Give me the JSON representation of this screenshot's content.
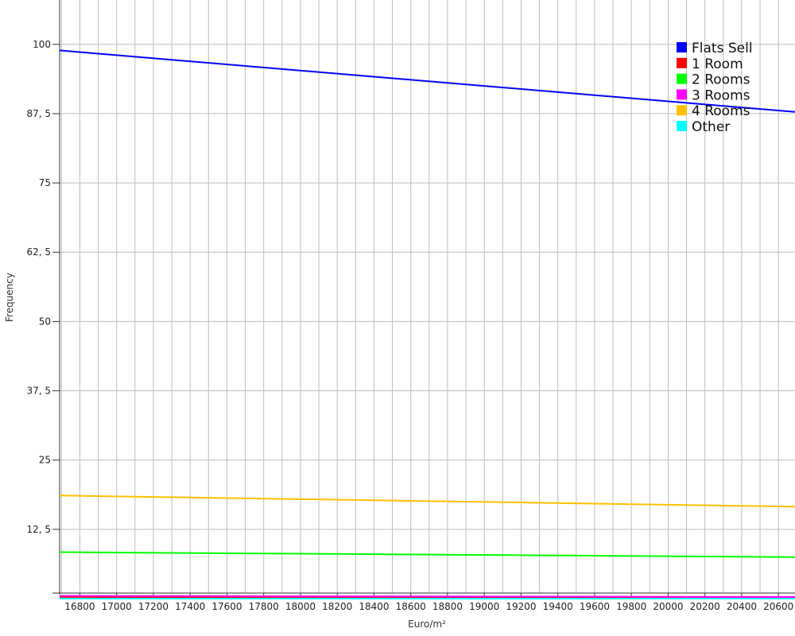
{
  "chart_data": {
    "type": "line",
    "xlabel": "Euro/m²",
    "ylabel": "Frequency",
    "xlim": [
      16690,
      20690
    ],
    "ylim": [
      -1,
      108
    ],
    "x_ticks": [
      16800,
      17000,
      17200,
      17400,
      17600,
      17800,
      18000,
      18200,
      18400,
      18600,
      18800,
      19000,
      19200,
      19400,
      19600,
      19800,
      20000,
      20200,
      20400,
      20600
    ],
    "y_ticks": [
      {
        "value": 12.5,
        "label": "12, 5"
      },
      {
        "value": 25,
        "label": "25"
      },
      {
        "value": 37.5,
        "label": "37, 5"
      },
      {
        "value": 50,
        "label": "50"
      },
      {
        "value": 62.5,
        "label": "62, 5"
      },
      {
        "value": 75,
        "label": "75"
      },
      {
        "value": 87.5,
        "label": "87, 5"
      },
      {
        "value": 100,
        "label": "100"
      }
    ],
    "grid": true,
    "legend_position": "top-right",
    "series": [
      {
        "name": "Flats Sell",
        "color": "#0000ff",
        "x": [
          16690,
          20690
        ],
        "y": [
          98.9,
          87.8
        ]
      },
      {
        "name": "1 Room",
        "color": "#ff0000",
        "x": [
          16690,
          20690
        ],
        "y": [
          0.3,
          0.2
        ]
      },
      {
        "name": "2 Rooms",
        "color": "#00ff00",
        "x": [
          16690,
          20690
        ],
        "y": [
          8.4,
          7.5
        ]
      },
      {
        "name": "3 Rooms",
        "color": "#ff00ff",
        "x": [
          16690,
          20690
        ],
        "y": [
          0.5,
          0.3
        ]
      },
      {
        "name": "4 Rooms",
        "color": "#ffc000",
        "x": [
          16690,
          20690
        ],
        "y": [
          18.6,
          16.6
        ]
      },
      {
        "name": "Other",
        "color": "#00ffff",
        "x": [
          16690,
          20690
        ],
        "y": [
          0.0,
          0.0
        ]
      }
    ]
  }
}
